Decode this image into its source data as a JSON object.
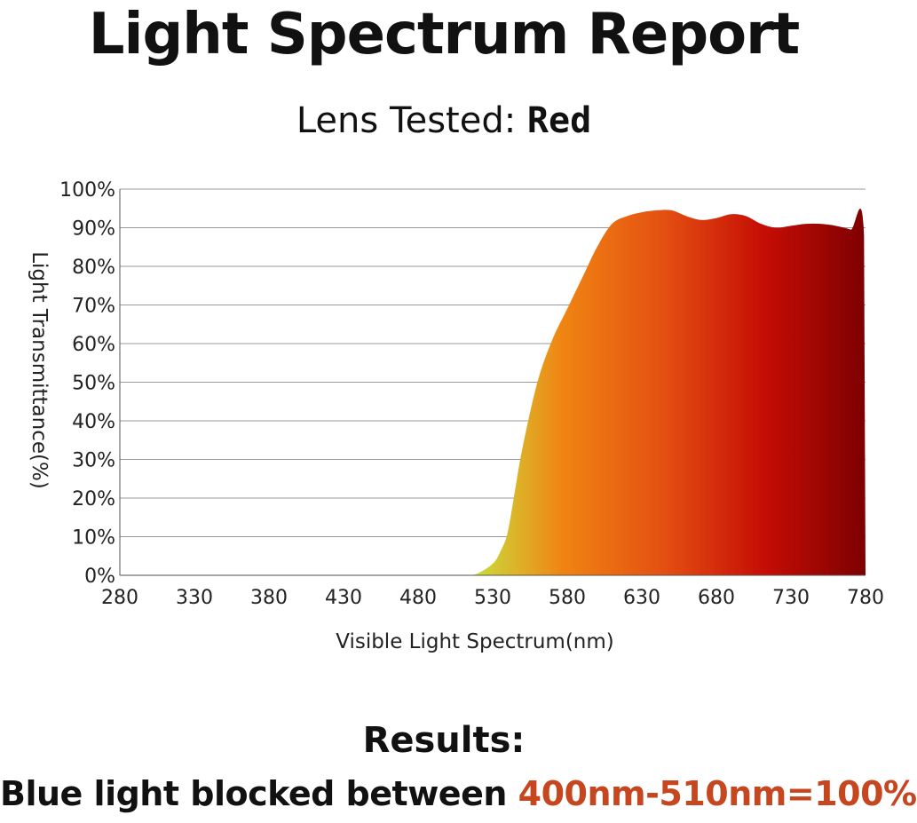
{
  "header": {
    "title": "Light Spectrum Report",
    "lens_label": "Lens Tested:",
    "lens_value": "Red"
  },
  "chart_data": {
    "type": "area",
    "xlabel": "Visible Light Spectrum(nm)",
    "ylabel": "Light Transmittance(%)",
    "xlim": [
      280,
      780
    ],
    "ylim": [
      0,
      100
    ],
    "x_ticks": [
      280,
      330,
      380,
      430,
      480,
      530,
      580,
      630,
      680,
      730,
      780
    ],
    "x_tick_labels": [
      "280",
      "330",
      "380",
      "430",
      "480",
      "530",
      "580",
      "630",
      "680",
      "730",
      "780"
    ],
    "y_ticks": [
      0,
      10,
      20,
      30,
      40,
      50,
      60,
      70,
      80,
      90,
      100
    ],
    "y_tick_labels": [
      "0%",
      "10%",
      "20%",
      "30%",
      "40%",
      "50%",
      "60%",
      "70%",
      "80%",
      "90%",
      "100%"
    ],
    "grid": true,
    "fill_gradient": [
      "#c4ea45",
      "#f08412",
      "#e45012",
      "#c50d05",
      "#7d0000"
    ],
    "x": [
      513,
      520,
      530,
      535,
      540,
      545,
      550,
      560,
      570,
      580,
      590,
      600,
      610,
      620,
      630,
      640,
      650,
      660,
      670,
      680,
      690,
      700,
      710,
      720,
      730,
      740,
      750,
      760,
      770,
      779,
      780
    ],
    "values": [
      0,
      0.5,
      3,
      6,
      11,
      22,
      33,
      50,
      61,
      69,
      77,
      85,
      91,
      93,
      94,
      94.5,
      94.5,
      93,
      92,
      92.5,
      93.5,
      93,
      91,
      90,
      90.5,
      91,
      91,
      90.5,
      89.5,
      88,
      0
    ]
  },
  "results": {
    "heading": "Results:",
    "text": "Blue light blocked between ",
    "highlight": "400nm-510nm=100%"
  }
}
